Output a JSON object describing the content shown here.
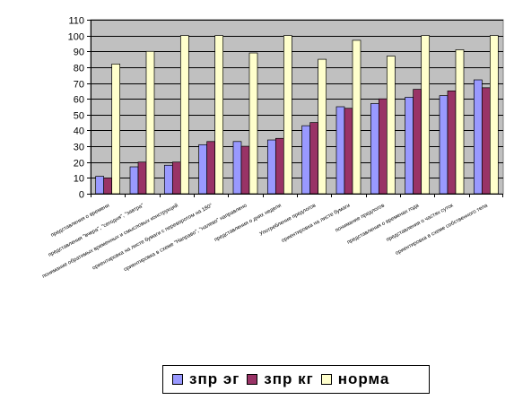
{
  "chart_data": {
    "type": "bar",
    "categories": [
      "представления о времени",
      "представления \"вчера\", \"сегодня\", \"завтра\"",
      "понимание обратимых временных и смысловых конструкций",
      "ориентировка на листе бумаги с переворотом на 180°",
      "ориентировка в схеме \"Направо\", \"налево\" направлено",
      "представления о днях недели",
      "Употребление предлогов",
      "ориентировка на листе бумаги",
      "понимание предлогов",
      "представления о временах года",
      "представления о частях суток",
      "ориентировка в схеме собственного тела"
    ],
    "series": [
      {
        "name": "зпр эг",
        "color": "#9999ff",
        "values": [
          11,
          17,
          18,
          31,
          33,
          34,
          43,
          55,
          57,
          61,
          62,
          72
        ]
      },
      {
        "name": "зпр кг",
        "color": "#993366",
        "values": [
          10,
          20,
          20,
          33,
          30,
          35,
          45,
          54,
          60,
          66,
          65,
          67
        ]
      },
      {
        "name": "норма",
        "color": "#ffffcc",
        "values": [
          82,
          90,
          100,
          100,
          89,
          100,
          85,
          97,
          87,
          100,
          91,
          100
        ]
      }
    ],
    "ylim": [
      0,
      110
    ],
    "yticks": [
      0,
      10,
      20,
      30,
      40,
      50,
      60,
      70,
      80,
      90,
      100,
      110
    ],
    "grid": true,
    "plot_background": "#c0c0c0",
    "legend_position": "bottom"
  }
}
